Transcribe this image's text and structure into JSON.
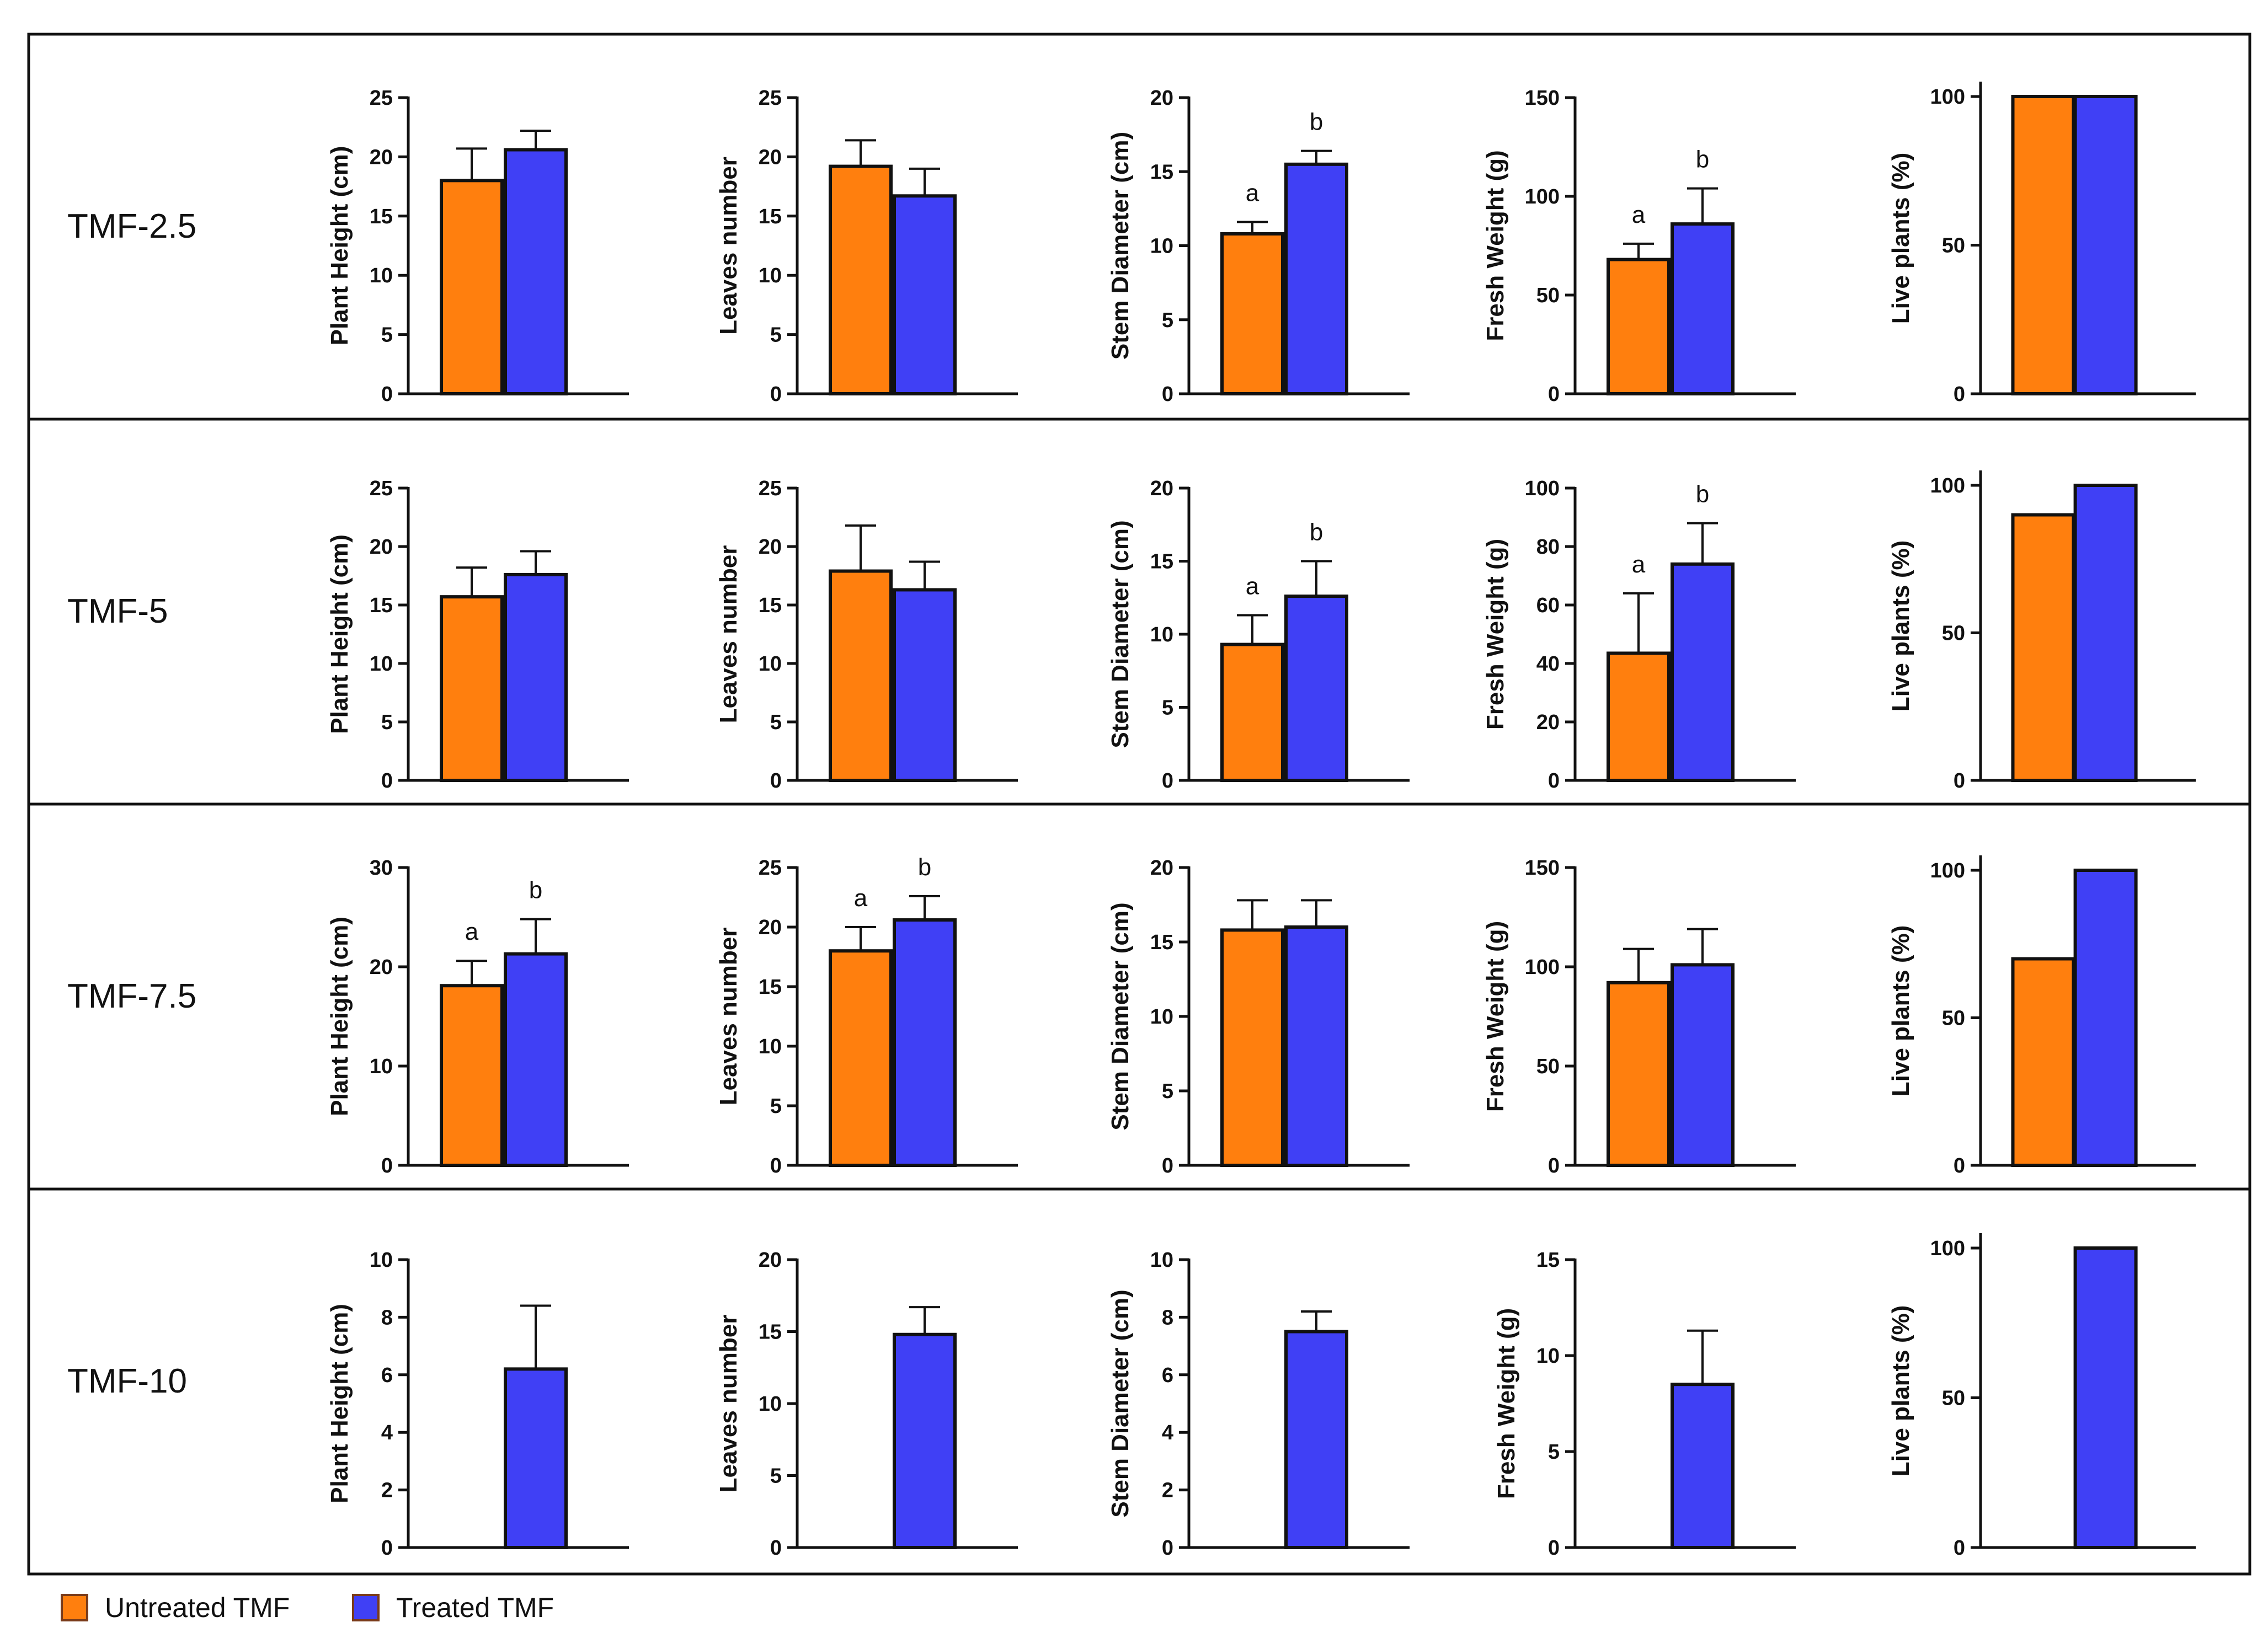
{
  "colors": {
    "untreated": "#FF7F0E",
    "treated": "#4040F5",
    "frame": "#111111"
  },
  "legend": [
    {
      "label": "Untreated TMF",
      "color": "#FF7F0E"
    },
    {
      "label": "Treated TMF",
      "color": "#4040F5"
    }
  ],
  "rows": [
    {
      "label": "TMF-2.5"
    },
    {
      "label": "TMF-5"
    },
    {
      "label": "TMF-7.5"
    },
    {
      "label": "TMF-10"
    }
  ],
  "chart_data": [
    {
      "type": "bar",
      "row": "TMF-2.5",
      "ylabel": "Plant Height (cm)",
      "ylim": [
        0,
        25
      ],
      "ticks": [
        0,
        5,
        10,
        15,
        20,
        25
      ],
      "series": [
        {
          "name": "Untreated TMF",
          "value": 18,
          "error": 2.7
        },
        {
          "name": "Treated TMF",
          "value": 20.6,
          "error": 1.6
        }
      ]
    },
    {
      "type": "bar",
      "row": "TMF-2.5",
      "ylabel": "Leaves number",
      "ylim": [
        0,
        25
      ],
      "ticks": [
        0,
        5,
        10,
        15,
        20,
        25
      ],
      "series": [
        {
          "name": "Untreated TMF",
          "value": 19.2,
          "error": 2.2
        },
        {
          "name": "Treated TMF",
          "value": 16.7,
          "error": 2.3
        }
      ]
    },
    {
      "type": "bar",
      "row": "TMF-2.5",
      "ylabel": "Stem Diameter (cm)",
      "ylim": [
        0,
        20
      ],
      "ticks": [
        0,
        5,
        10,
        15,
        20
      ],
      "series": [
        {
          "name": "Untreated TMF",
          "value": 10.8,
          "error": 0.8,
          "letter": "a"
        },
        {
          "name": "Treated TMF",
          "value": 15.5,
          "error": 0.9,
          "letter": "b"
        }
      ]
    },
    {
      "type": "bar",
      "row": "TMF-2.5",
      "ylabel": "Fresh Weight (g)",
      "ylim": [
        0,
        150
      ],
      "ticks": [
        0,
        50,
        100,
        150
      ],
      "series": [
        {
          "name": "Untreated TMF",
          "value": 68,
          "error": 8,
          "letter": "a"
        },
        {
          "name": "Treated TMF",
          "value": 86,
          "error": 18,
          "letter": "b"
        }
      ]
    },
    {
      "type": "bar",
      "row": "TMF-2.5",
      "ylabel": "Live plants (%)",
      "ylim": [
        0,
        100
      ],
      "ticks": [
        0,
        50,
        100
      ],
      "series": [
        {
          "name": "Untreated TMF",
          "value": 100
        },
        {
          "name": "Treated TMF",
          "value": 100
        }
      ]
    },
    {
      "type": "bar",
      "row": "TMF-5",
      "ylabel": "Plant Height (cm)",
      "ylim": [
        0,
        25
      ],
      "ticks": [
        0,
        5,
        10,
        15,
        20,
        25
      ],
      "series": [
        {
          "name": "Untreated TMF",
          "value": 15.7,
          "error": 2.5
        },
        {
          "name": "Treated TMF",
          "value": 17.6,
          "error": 2
        }
      ]
    },
    {
      "type": "bar",
      "row": "TMF-5",
      "ylabel": "Leaves number",
      "ylim": [
        0,
        25
      ],
      "ticks": [
        0,
        5,
        10,
        15,
        20,
        25
      ],
      "series": [
        {
          "name": "Untreated TMF",
          "value": 17.9,
          "error": 3.9
        },
        {
          "name": "Treated TMF",
          "value": 16.3,
          "error": 2.4
        }
      ]
    },
    {
      "type": "bar",
      "row": "TMF-5",
      "ylabel": "Stem Diameter (cm)",
      "ylim": [
        0,
        20
      ],
      "ticks": [
        0,
        5,
        10,
        15,
        20
      ],
      "series": [
        {
          "name": "Untreated TMF",
          "value": 9.3,
          "error": 2,
          "letter": "a"
        },
        {
          "name": "Treated TMF",
          "value": 12.6,
          "error": 2.4,
          "letter": "b"
        }
      ]
    },
    {
      "type": "bar",
      "row": "TMF-5",
      "ylabel": "Fresh Weight (g)",
      "ylim": [
        0,
        100
      ],
      "ticks": [
        0,
        20,
        40,
        60,
        80,
        100
      ],
      "series": [
        {
          "name": "Untreated TMF",
          "value": 43.5,
          "error": 20.5,
          "letter": "a"
        },
        {
          "name": "Treated TMF",
          "value": 74,
          "error": 14,
          "letter": "b"
        }
      ]
    },
    {
      "type": "bar",
      "row": "TMF-5",
      "ylabel": "Live plants (%)",
      "ylim": [
        0,
        100
      ],
      "ticks": [
        0,
        50,
        100
      ],
      "series": [
        {
          "name": "Untreated TMF",
          "value": 90
        },
        {
          "name": "Treated TMF",
          "value": 100
        }
      ]
    },
    {
      "type": "bar",
      "row": "TMF-7.5",
      "ylabel": "Plant Height (cm)",
      "ylim": [
        0,
        30
      ],
      "ticks": [
        0,
        10,
        20,
        30
      ],
      "series": [
        {
          "name": "Untreated TMF",
          "value": 18.1,
          "error": 2.5,
          "letter": "a"
        },
        {
          "name": "Treated TMF",
          "value": 21.3,
          "error": 3.5,
          "letter": "b"
        }
      ]
    },
    {
      "type": "bar",
      "row": "TMF-7.5",
      "ylabel": "Leaves number",
      "ylim": [
        0,
        25
      ],
      "ticks": [
        0,
        5,
        10,
        15,
        20,
        25
      ],
      "series": [
        {
          "name": "Untreated TMF",
          "value": 18,
          "error": 2,
          "letter": "a"
        },
        {
          "name": "Treated TMF",
          "value": 20.6,
          "error": 2,
          "letter": "b"
        }
      ]
    },
    {
      "type": "bar",
      "row": "TMF-7.5",
      "ylabel": "Stem Diameter (cm)",
      "ylim": [
        0,
        20
      ],
      "ticks": [
        0,
        5,
        10,
        15,
        20
      ],
      "series": [
        {
          "name": "Untreated TMF",
          "value": 15.8,
          "error": 2
        },
        {
          "name": "Treated TMF",
          "value": 16,
          "error": 1.8
        }
      ]
    },
    {
      "type": "bar",
      "row": "TMF-7.5",
      "ylabel": "Fresh Weight (g)",
      "ylim": [
        0,
        150
      ],
      "ticks": [
        0,
        50,
        100,
        150
      ],
      "series": [
        {
          "name": "Untreated TMF",
          "value": 92,
          "error": 17
        },
        {
          "name": "Treated TMF",
          "value": 101,
          "error": 18
        }
      ]
    },
    {
      "type": "bar",
      "row": "TMF-7.5",
      "ylabel": "Live plants (%)",
      "ylim": [
        0,
        100
      ],
      "ticks": [
        0,
        50,
        100
      ],
      "series": [
        {
          "name": "Untreated TMF",
          "value": 70
        },
        {
          "name": "Treated TMF",
          "value": 100
        }
      ]
    },
    {
      "type": "bar",
      "row": "TMF-10",
      "ylabel": "Plant Height (cm)",
      "ylim": [
        0,
        10
      ],
      "ticks": [
        0,
        2,
        4,
        6,
        8,
        10
      ],
      "series": [
        {
          "name": "Untreated TMF",
          "value": null
        },
        {
          "name": "Treated TMF",
          "value": 6.2,
          "error": 2.2
        }
      ]
    },
    {
      "type": "bar",
      "row": "TMF-10",
      "ylabel": "Leaves number",
      "ylim": [
        0,
        20
      ],
      "ticks": [
        0,
        5,
        10,
        15,
        20
      ],
      "series": [
        {
          "name": "Untreated TMF",
          "value": null
        },
        {
          "name": "Treated TMF",
          "value": 14.8,
          "error": 1.9
        }
      ]
    },
    {
      "type": "bar",
      "row": "TMF-10",
      "ylabel": "Stem Diameter (cm)",
      "ylim": [
        0,
        10
      ],
      "ticks": [
        0,
        2,
        4,
        6,
        8,
        10
      ],
      "series": [
        {
          "name": "Untreated TMF",
          "value": null
        },
        {
          "name": "Treated TMF",
          "value": 7.5,
          "error": 0.7
        }
      ]
    },
    {
      "type": "bar",
      "row": "TMF-10",
      "ylabel": "Fresh Weight (g)",
      "ylim": [
        0,
        15
      ],
      "ticks": [
        0,
        5,
        10,
        15
      ],
      "series": [
        {
          "name": "Untreated TMF",
          "value": null
        },
        {
          "name": "Treated TMF",
          "value": 8.5,
          "error": 2.8
        }
      ]
    },
    {
      "type": "bar",
      "row": "TMF-10",
      "ylabel": "Live plants (%)",
      "ylim": [
        0,
        100
      ],
      "ticks": [
        0,
        50,
        100
      ],
      "series": [
        {
          "name": "Untreated TMF",
          "value": null
        },
        {
          "name": "Treated TMF",
          "value": 100
        }
      ]
    }
  ]
}
